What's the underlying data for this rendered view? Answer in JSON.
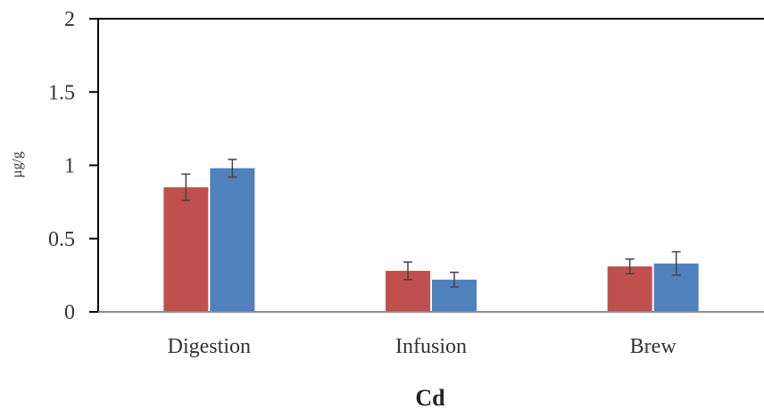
{
  "chart_data": {
    "type": "bar",
    "title": "",
    "xlabel": "Cd",
    "ylabel": "µg/g",
    "categories": [
      "Digestion",
      "Infusion",
      "Brew"
    ],
    "ylim": [
      0,
      2
    ],
    "yticks": [
      0,
      0.5,
      1,
      1.5,
      2
    ],
    "ytick_labels": [
      "0",
      "0.5",
      "1",
      "1.5",
      "2"
    ],
    "grid": false,
    "legend": "none",
    "series": [
      {
        "color": "#c0504d",
        "values": [
          0.85,
          0.28,
          0.31
        ],
        "errors": [
          0.09,
          0.06,
          0.05
        ]
      },
      {
        "color": "#4f81bd",
        "values": [
          0.98,
          0.22,
          0.33
        ],
        "errors": [
          0.06,
          0.05,
          0.08
        ]
      }
    ]
  }
}
